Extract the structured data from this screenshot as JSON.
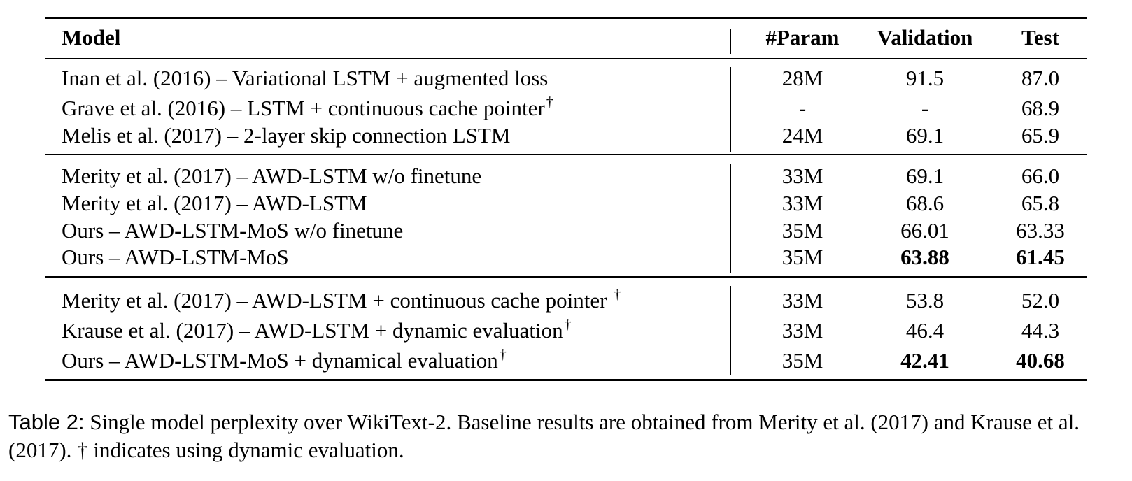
{
  "table": {
    "headers": {
      "model": "Model",
      "param": "#Param",
      "validation": "Validation",
      "test": "Test"
    },
    "dagger": "†",
    "groups": [
      [
        {
          "model": "Inan et al. (2016) – Variational LSTM + augmented loss",
          "dagger": false,
          "param": "28M",
          "validation": "91.5",
          "test": "87.0",
          "bold_val": false,
          "bold_test": false
        },
        {
          "model": "Grave et al. (2016) – LSTM + continuous cache pointer",
          "dagger": true,
          "param": "-",
          "validation": "-",
          "test": "68.9",
          "bold_val": false,
          "bold_test": false
        },
        {
          "model": "Melis et al. (2017) – 2-layer skip connection LSTM",
          "dagger": false,
          "param": "24M",
          "validation": "69.1",
          "test": "65.9",
          "bold_val": false,
          "bold_test": false
        }
      ],
      [
        {
          "model": "Merity et al. (2017) – AWD-LSTM w/o finetune",
          "dagger": false,
          "param": "33M",
          "validation": "69.1",
          "test": "66.0",
          "bold_val": false,
          "bold_test": false
        },
        {
          "model": "Merity et al. (2017) – AWD-LSTM",
          "dagger": false,
          "param": "33M",
          "validation": "68.6",
          "test": "65.8",
          "bold_val": false,
          "bold_test": false
        },
        {
          "model": "Ours – AWD-LSTM-MoS w/o finetune",
          "dagger": false,
          "param": "35M",
          "validation": "66.01",
          "test": "63.33",
          "bold_val": false,
          "bold_test": false
        },
        {
          "model": "Ours – AWD-LSTM-MoS",
          "dagger": false,
          "param": "35M",
          "validation": "63.88",
          "test": "61.45",
          "bold_val": true,
          "bold_test": true
        }
      ],
      [
        {
          "model": "Merity et al. (2017) – AWD-LSTM + continuous cache pointer ",
          "dagger": true,
          "param": "33M",
          "validation": "53.8",
          "test": "52.0",
          "bold_val": false,
          "bold_test": false
        },
        {
          "model": "Krause et al. (2017) – AWD-LSTM + dynamic evaluation",
          "dagger": true,
          "param": "33M",
          "validation": "46.4",
          "test": "44.3",
          "bold_val": false,
          "bold_test": false
        },
        {
          "model": "Ours – AWD-LSTM-MoS + dynamical evaluation",
          "dagger": true,
          "param": "35M",
          "validation": "42.41",
          "test": "40.68",
          "bold_val": true,
          "bold_test": true
        }
      ]
    ]
  },
  "caption": {
    "label": "Table 2:",
    "text": "Single model perplexity over WikiText-2. Baseline results are obtained from Merity et al. (2017) and Krause et al. (2017). † indicates using dynamic evaluation."
  }
}
